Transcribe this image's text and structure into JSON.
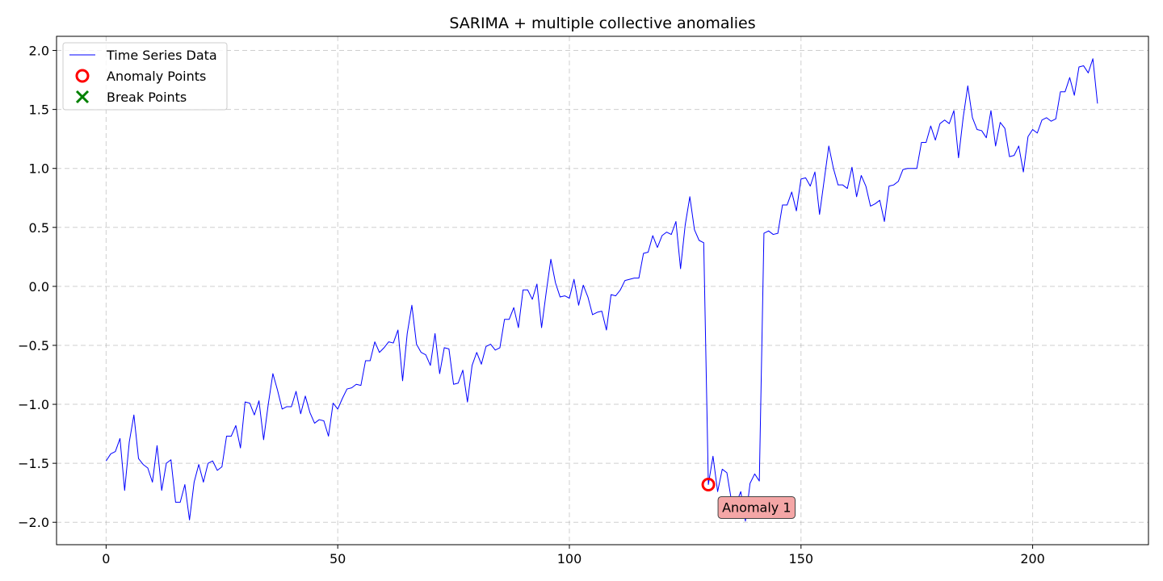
{
  "chart_data": {
    "type": "line",
    "title": "SARIMA + multiple collective anomalies",
    "xlabel": "",
    "ylabel": "",
    "xlim": [
      -10.7,
      225.0
    ],
    "ylim": [
      -2.19,
      2.12
    ],
    "xticks": [
      0,
      50,
      100,
      150,
      200
    ],
    "xtick_labels": [
      "0",
      "50",
      "100",
      "150",
      "200"
    ],
    "yticks": [
      2.0,
      1.5,
      1.0,
      0.5,
      0.0,
      -0.5,
      -1.0,
      -1.5,
      -2.0
    ],
    "ytick_labels": [
      "2.0",
      "1.5",
      "1.0",
      "0.5",
      "0.0",
      "−0.5",
      "−1.0",
      "−1.5",
      "−2.0"
    ],
    "grid": true,
    "legend_position": "top-left",
    "legend": [
      {
        "label": "Time Series Data",
        "marker": "line",
        "color": "#0000ff"
      },
      {
        "label": "Anomaly Points",
        "marker": "circle",
        "color": "#ff0000"
      },
      {
        "label": "Break Points",
        "marker": "x",
        "color": "#008000"
      }
    ],
    "series": [
      {
        "name": "Time Series Data",
        "color": "#0000ff",
        "x_start": 0,
        "values": [
          -1.48,
          -1.42,
          -1.4,
          -1.29,
          -1.73,
          -1.32,
          -1.09,
          -1.46,
          -1.51,
          -1.54,
          -1.66,
          -1.35,
          -1.73,
          -1.5,
          -1.47,
          -1.83,
          -1.83,
          -1.68,
          -1.98,
          -1.66,
          -1.51,
          -1.66,
          -1.5,
          -1.48,
          -1.56,
          -1.53,
          -1.27,
          -1.27,
          -1.18,
          -1.37,
          -0.98,
          -0.99,
          -1.09,
          -0.97,
          -1.3,
          -1.0,
          -0.74,
          -0.88,
          -1.04,
          -1.02,
          -1.02,
          -0.89,
          -1.08,
          -0.93,
          -1.07,
          -1.16,
          -1.13,
          -1.14,
          -1.27,
          -0.99,
          -1.04,
          -0.95,
          -0.87,
          -0.86,
          -0.83,
          -0.84,
          -0.63,
          -0.63,
          -0.47,
          -0.56,
          -0.52,
          -0.47,
          -0.48,
          -0.37,
          -0.8,
          -0.4,
          -0.16,
          -0.49,
          -0.56,
          -0.58,
          -0.67,
          -0.4,
          -0.74,
          -0.52,
          -0.53,
          -0.83,
          -0.82,
          -0.71,
          -0.98,
          -0.67,
          -0.56,
          -0.66,
          -0.51,
          -0.49,
          -0.54,
          -0.52,
          -0.28,
          -0.28,
          -0.18,
          -0.35,
          -0.03,
          -0.03,
          -0.11,
          0.02,
          -0.35,
          -0.05,
          0.23,
          0.03,
          -0.09,
          -0.08,
          -0.1,
          0.06,
          -0.16,
          0.01,
          -0.09,
          -0.24,
          -0.22,
          -0.21,
          -0.37,
          -0.07,
          -0.08,
          -0.03,
          0.05,
          0.06,
          0.07,
          0.07,
          0.28,
          0.29,
          0.43,
          0.33,
          0.43,
          0.46,
          0.44,
          0.55,
          0.15,
          0.52,
          0.76,
          0.48,
          0.39,
          0.37,
          -1.68,
          -1.44,
          -1.74,
          -1.55,
          -1.58,
          -1.82,
          -1.84,
          -1.74,
          -1.99,
          -1.67,
          -1.59,
          -1.65,
          0.45,
          0.47,
          0.44,
          0.45,
          0.69,
          0.69,
          0.8,
          0.64,
          0.91,
          0.92,
          0.85,
          0.97,
          0.61,
          0.9,
          1.19,
          1.0,
          0.86,
          0.86,
          0.83,
          1.01,
          0.76,
          0.94,
          0.85,
          0.68,
          0.7,
          0.73,
          0.55,
          0.85,
          0.86,
          0.89,
          0.99,
          1.0,
          1.0,
          1.0,
          1.22,
          1.22,
          1.36,
          1.24,
          1.38,
          1.41,
          1.38,
          1.49,
          1.09,
          1.43,
          1.7,
          1.43,
          1.33,
          1.32,
          1.26,
          1.49,
          1.19,
          1.39,
          1.34,
          1.1,
          1.11,
          1.19,
          0.97,
          1.27,
          1.33,
          1.3,
          1.41,
          1.43,
          1.4,
          1.42,
          1.65,
          1.65,
          1.77,
          1.62,
          1.86,
          1.87,
          1.81,
          1.93,
          1.55
        ]
      }
    ],
    "anomaly_points": [
      {
        "x": 130,
        "y": -1.68
      }
    ],
    "break_points": [],
    "annotations": [
      {
        "text": "Anomaly 1",
        "x": 130,
        "y": -1.68
      }
    ]
  }
}
